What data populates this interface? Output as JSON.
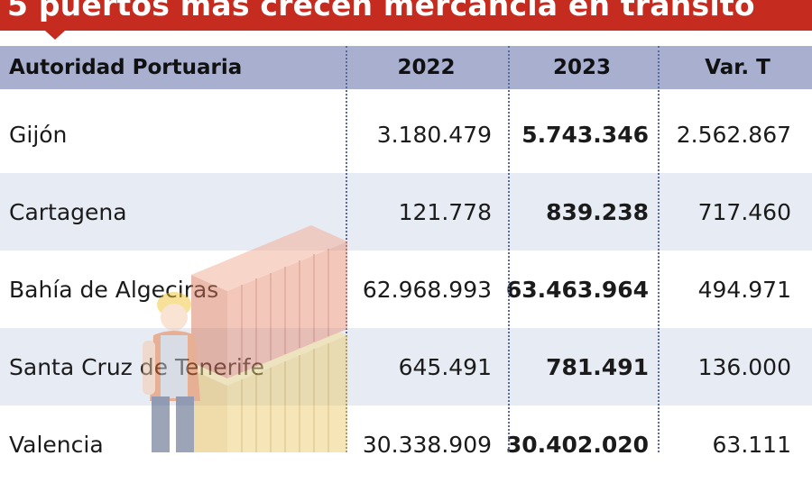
{
  "title": "5 puertos más crecen mercancía en tránsito",
  "columns": [
    "Autoridad Portuaria",
    "2022",
    "2023",
    "Var. T"
  ],
  "rows": [
    {
      "name": "Gijón",
      "y2022": "3.180.479",
      "y2023": "5.743.346",
      "var": "2.562.867"
    },
    {
      "name": "Cartagena",
      "y2022": "121.778",
      "y2023": "839.238",
      "var": "717.460"
    },
    {
      "name": "Bahía de Algeciras",
      "y2022": "62.968.993",
      "y2023": "63.463.964",
      "var": "494.971"
    },
    {
      "name": "Santa Cruz de Tenerife",
      "y2022": "645.491",
      "y2023": "781.491",
      "var": "136.000"
    },
    {
      "name": "Valencia",
      "y2022": "30.338.909",
      "y2023": "30.402.020",
      "var": "63.111"
    }
  ],
  "colors": {
    "title_bg": "#c52b1f",
    "header_bg": "#a9b0cf",
    "alt_row_bg": "#e7ebf3"
  }
}
